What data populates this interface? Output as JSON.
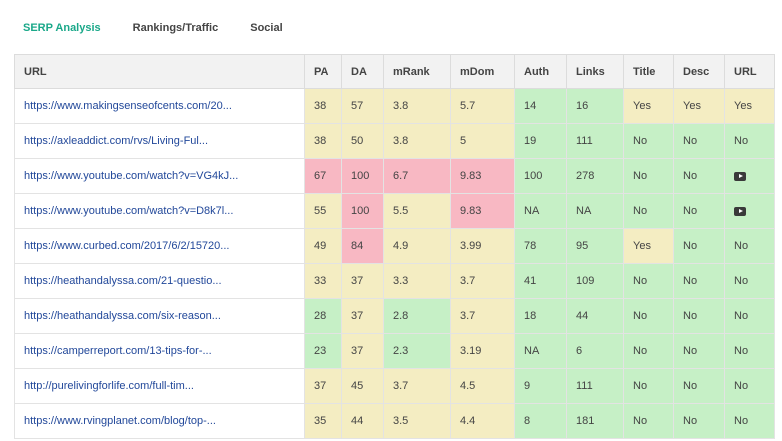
{
  "tabs": [
    {
      "label": "SERP Analysis",
      "active": true
    },
    {
      "label": "Rankings/Traffic",
      "active": false
    },
    {
      "label": "Social",
      "active": false
    }
  ],
  "colors": {
    "accent": "#1aa889",
    "link": "#22489a",
    "good": "#c6f0c6",
    "neutral": "#f4edc2",
    "bad": "#f8b8c3"
  },
  "columns": [
    "URL",
    "PA",
    "DA",
    "mRank",
    "mDom",
    "Auth",
    "Links",
    "Title",
    "Desc",
    "URL"
  ],
  "rows": [
    {
      "url": "https://www.makingsenseofcents.com/20...",
      "cells": [
        {
          "v": "38",
          "c": "yellow"
        },
        {
          "v": "57",
          "c": "yellow"
        },
        {
          "v": "3.8",
          "c": "yellow"
        },
        {
          "v": "5.7",
          "c": "yellow"
        },
        {
          "v": "14",
          "c": "green"
        },
        {
          "v": "16",
          "c": "green"
        },
        {
          "v": "Yes",
          "c": "yellow"
        },
        {
          "v": "Yes",
          "c": "yellow"
        },
        {
          "v": "Yes",
          "c": "yellow"
        }
      ]
    },
    {
      "url": "https://axleaddict.com/rvs/Living-Ful...",
      "cells": [
        {
          "v": "38",
          "c": "yellow"
        },
        {
          "v": "50",
          "c": "yellow"
        },
        {
          "v": "3.8",
          "c": "yellow"
        },
        {
          "v": "5",
          "c": "yellow"
        },
        {
          "v": "19",
          "c": "green"
        },
        {
          "v": "111",
          "c": "green"
        },
        {
          "v": "No",
          "c": "green"
        },
        {
          "v": "No",
          "c": "green"
        },
        {
          "v": "No",
          "c": "green"
        }
      ]
    },
    {
      "url": "https://www.youtube.com/watch?v=VG4kJ...",
      "cells": [
        {
          "v": "67",
          "c": "red"
        },
        {
          "v": "100",
          "c": "red"
        },
        {
          "v": "6.7",
          "c": "red"
        },
        {
          "v": "9.83",
          "c": "red"
        },
        {
          "v": "100",
          "c": "green"
        },
        {
          "v": "278",
          "c": "green"
        },
        {
          "v": "No",
          "c": "green"
        },
        {
          "v": "No",
          "c": "green"
        },
        {
          "v": "",
          "c": "green",
          "icon": "youtube-icon"
        }
      ]
    },
    {
      "url": "https://www.youtube.com/watch?v=D8k7l...",
      "cells": [
        {
          "v": "55",
          "c": "yellow"
        },
        {
          "v": "100",
          "c": "red"
        },
        {
          "v": "5.5",
          "c": "yellow"
        },
        {
          "v": "9.83",
          "c": "red"
        },
        {
          "v": "NA",
          "c": "green"
        },
        {
          "v": "NA",
          "c": "green"
        },
        {
          "v": "No",
          "c": "green"
        },
        {
          "v": "No",
          "c": "green"
        },
        {
          "v": "",
          "c": "green",
          "icon": "youtube-icon"
        }
      ]
    },
    {
      "url": "https://www.curbed.com/2017/6/2/15720...",
      "cells": [
        {
          "v": "49",
          "c": "yellow"
        },
        {
          "v": "84",
          "c": "red"
        },
        {
          "v": "4.9",
          "c": "yellow"
        },
        {
          "v": "3.99",
          "c": "yellow"
        },
        {
          "v": "78",
          "c": "green"
        },
        {
          "v": "95",
          "c": "green"
        },
        {
          "v": "Yes",
          "c": "yellow"
        },
        {
          "v": "No",
          "c": "green"
        },
        {
          "v": "No",
          "c": "green"
        }
      ]
    },
    {
      "url": "https://heathandalyssa.com/21-questio...",
      "cells": [
        {
          "v": "33",
          "c": "yellow"
        },
        {
          "v": "37",
          "c": "yellow"
        },
        {
          "v": "3.3",
          "c": "yellow"
        },
        {
          "v": "3.7",
          "c": "yellow"
        },
        {
          "v": "41",
          "c": "green"
        },
        {
          "v": "109",
          "c": "green"
        },
        {
          "v": "No",
          "c": "green"
        },
        {
          "v": "No",
          "c": "green"
        },
        {
          "v": "No",
          "c": "green"
        }
      ]
    },
    {
      "url": "https://heathandalyssa.com/six-reason...",
      "cells": [
        {
          "v": "28",
          "c": "green"
        },
        {
          "v": "37",
          "c": "yellow"
        },
        {
          "v": "2.8",
          "c": "green"
        },
        {
          "v": "3.7",
          "c": "yellow"
        },
        {
          "v": "18",
          "c": "green"
        },
        {
          "v": "44",
          "c": "green"
        },
        {
          "v": "No",
          "c": "green"
        },
        {
          "v": "No",
          "c": "green"
        },
        {
          "v": "No",
          "c": "green"
        }
      ]
    },
    {
      "url": "https://camperreport.com/13-tips-for-...",
      "cells": [
        {
          "v": "23",
          "c": "green"
        },
        {
          "v": "37",
          "c": "yellow"
        },
        {
          "v": "2.3",
          "c": "green"
        },
        {
          "v": "3.19",
          "c": "yellow"
        },
        {
          "v": "NA",
          "c": "green"
        },
        {
          "v": "6",
          "c": "green"
        },
        {
          "v": "No",
          "c": "green"
        },
        {
          "v": "No",
          "c": "green"
        },
        {
          "v": "No",
          "c": "green"
        }
      ]
    },
    {
      "url": "http://purelivingforlife.com/full-tim...",
      "cells": [
        {
          "v": "37",
          "c": "yellow"
        },
        {
          "v": "45",
          "c": "yellow"
        },
        {
          "v": "3.7",
          "c": "yellow"
        },
        {
          "v": "4.5",
          "c": "yellow"
        },
        {
          "v": "9",
          "c": "green"
        },
        {
          "v": "111",
          "c": "green"
        },
        {
          "v": "No",
          "c": "green"
        },
        {
          "v": "No",
          "c": "green"
        },
        {
          "v": "No",
          "c": "green"
        }
      ]
    },
    {
      "url": "https://www.rvingplanet.com/blog/top-...",
      "cells": [
        {
          "v": "35",
          "c": "yellow"
        },
        {
          "v": "44",
          "c": "yellow"
        },
        {
          "v": "3.5",
          "c": "yellow"
        },
        {
          "v": "4.4",
          "c": "yellow"
        },
        {
          "v": "8",
          "c": "green"
        },
        {
          "v": "181",
          "c": "green"
        },
        {
          "v": "No",
          "c": "green"
        },
        {
          "v": "No",
          "c": "green"
        },
        {
          "v": "No",
          "c": "green"
        }
      ]
    }
  ]
}
